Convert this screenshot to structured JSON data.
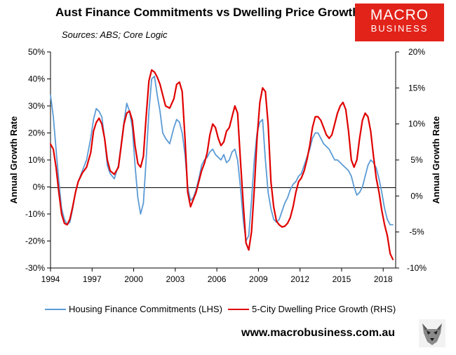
{
  "title": "Aust Finance Commitments vs Dwelling Price Growth",
  "sources": "Sources: ABS; Core Logic",
  "logo": {
    "line1": "MACRO",
    "line2": "BUSINESS",
    "color": "#e2231a"
  },
  "website": "www.macrobusiness.com.au",
  "wolf_icon": "wolf-icon",
  "chart_data": {
    "type": "line",
    "ylabel_left": "Annual Growth Rate",
    "ylabel_right": "Annual Growth Rate",
    "xlim": [
      1994,
      2018.9
    ],
    "ylim_left": [
      -30,
      50
    ],
    "ylim_right": [
      -10,
      20
    ],
    "x_ticks": [
      1994,
      1997,
      2000,
      2003,
      2006,
      2009,
      2012,
      2015,
      2018
    ],
    "x_tick_labels": [
      "1994",
      "1997",
      "2000",
      "2003",
      "2006",
      "2009",
      "2012",
      "2015",
      "2018"
    ],
    "y_ticks_left": [
      -30,
      -20,
      -10,
      0,
      10,
      20,
      30,
      40,
      50
    ],
    "y_tick_labels_left": [
      "-30%",
      "-20%",
      "-10%",
      "0%",
      "10%",
      "20%",
      "30%",
      "40%",
      "50%"
    ],
    "y_ticks_right": [
      -10,
      -5,
      0,
      5,
      10,
      15,
      20
    ],
    "y_tick_labels_right": [
      "-10%",
      "-5%",
      "0%",
      "5%",
      "10%",
      "15%",
      "20%"
    ],
    "grid": false,
    "legend_placement": "bottom",
    "series": [
      {
        "name": "Housing Finance Commitments (LHS)",
        "axis": "left",
        "color": "#5b9bd5",
        "x": [
          1994.0,
          1994.2,
          1994.4,
          1994.6,
          1994.8,
          1995.0,
          1995.2,
          1995.4,
          1995.6,
          1995.8,
          1996.0,
          1996.3,
          1996.6,
          1996.9,
          1997.1,
          1997.3,
          1997.5,
          1997.7,
          1997.9,
          1998.1,
          1998.3,
          1998.6,
          1998.9,
          1999.1,
          1999.3,
          1999.5,
          1999.7,
          1999.9,
          2000.1,
          2000.3,
          2000.5,
          2000.7,
          2000.9,
          2001.1,
          2001.3,
          2001.5,
          2001.7,
          2001.9,
          2002.1,
          2002.3,
          2002.6,
          2002.9,
          2003.1,
          2003.3,
          2003.5,
          2003.7,
          2003.9,
          2004.1,
          2004.3,
          2004.5,
          2004.7,
          2004.9,
          2005.1,
          2005.3,
          2005.5,
          2005.7,
          2005.9,
          2006.1,
          2006.3,
          2006.5,
          2006.7,
          2006.9,
          2007.1,
          2007.3,
          2007.5,
          2007.7,
          2007.9,
          2008.1,
          2008.3,
          2008.5,
          2008.7,
          2008.9,
          2009.1,
          2009.3,
          2009.5,
          2009.7,
          2009.9,
          2010.1,
          2010.3,
          2010.5,
          2010.7,
          2010.9,
          2011.1,
          2011.3,
          2011.5,
          2011.7,
          2011.9,
          2012.1,
          2012.3,
          2012.5,
          2012.7,
          2012.9,
          2013.1,
          2013.3,
          2013.5,
          2013.7,
          2013.9,
          2014.1,
          2014.3,
          2014.5,
          2014.7,
          2014.9,
          2015.1,
          2015.3,
          2015.5,
          2015.7,
          2015.9,
          2016.1,
          2016.3,
          2016.5,
          2016.7,
          2016.9,
          2017.1,
          2017.3,
          2017.5,
          2017.7,
          2017.9,
          2018.1,
          2018.3,
          2018.5,
          2018.7
        ],
        "values": [
          34,
          26,
          14,
          2,
          -8,
          -12,
          -14,
          -13,
          -8,
          -2,
          2,
          6,
          10,
          18,
          25,
          29,
          28,
          26,
          18,
          8,
          5,
          3,
          8,
          16,
          24,
          31,
          28,
          22,
          8,
          -4,
          -10,
          -6,
          10,
          28,
          40,
          41,
          34,
          28,
          20,
          18,
          16,
          22,
          25,
          24,
          20,
          12,
          0,
          -5,
          -4,
          -1,
          3,
          8,
          10,
          11,
          13,
          14,
          12,
          11,
          10,
          12,
          9,
          10,
          13,
          14,
          10,
          0,
          -12,
          -20,
          -18,
          -5,
          10,
          20,
          24,
          25,
          10,
          -2,
          -8,
          -12,
          -13,
          -12,
          -9,
          -6,
          -4,
          -1,
          1,
          2,
          4,
          5,
          8,
          11,
          14,
          18,
          20,
          20,
          18,
          16,
          15,
          14,
          12,
          10,
          10,
          9,
          8,
          7,
          6,
          4,
          0,
          -3,
          -2,
          0,
          4,
          8,
          10,
          9,
          7,
          3,
          -2,
          -8,
          -12,
          -14,
          -14
        ]
      },
      {
        "name": "5-City Dwelling Price Growth (RHS)",
        "axis": "right",
        "color": "#e00000",
        "x": [
          1994.0,
          1994.2,
          1994.4,
          1994.6,
          1994.8,
          1995.0,
          1995.2,
          1995.4,
          1995.6,
          1995.8,
          1996.0,
          1996.3,
          1996.6,
          1996.9,
          1997.1,
          1997.3,
          1997.5,
          1997.7,
          1997.9,
          1998.1,
          1998.3,
          1998.6,
          1998.9,
          1999.1,
          1999.3,
          1999.5,
          1999.7,
          1999.9,
          2000.1,
          2000.3,
          2000.5,
          2000.7,
          2000.9,
          2001.1,
          2001.3,
          2001.5,
          2001.7,
          2001.9,
          2002.1,
          2002.3,
          2002.6,
          2002.9,
          2003.1,
          2003.3,
          2003.5,
          2003.7,
          2003.9,
          2004.1,
          2004.3,
          2004.5,
          2004.7,
          2004.9,
          2005.1,
          2005.3,
          2005.5,
          2005.7,
          2005.9,
          2006.1,
          2006.3,
          2006.5,
          2006.7,
          2006.9,
          2007.1,
          2007.3,
          2007.5,
          2007.7,
          2007.9,
          2008.1,
          2008.3,
          2008.5,
          2008.7,
          2008.9,
          2009.1,
          2009.3,
          2009.5,
          2009.7,
          2009.9,
          2010.1,
          2010.3,
          2010.5,
          2010.7,
          2010.9,
          2011.1,
          2011.3,
          2011.5,
          2011.7,
          2011.9,
          2012.1,
          2012.3,
          2012.5,
          2012.7,
          2012.9,
          2013.1,
          2013.3,
          2013.5,
          2013.7,
          2013.9,
          2014.1,
          2014.3,
          2014.5,
          2014.7,
          2014.9,
          2015.1,
          2015.3,
          2015.5,
          2015.7,
          2015.9,
          2016.1,
          2016.3,
          2016.5,
          2016.7,
          2016.9,
          2017.1,
          2017.3,
          2017.5,
          2017.7,
          2017.9,
          2018.1,
          2018.3,
          2018.5,
          2018.7
        ],
        "values": [
          7.2,
          6.5,
          4.0,
          0.5,
          -2.5,
          -3.8,
          -4.0,
          -3.2,
          -1.5,
          0.5,
          2.0,
          3.2,
          4.0,
          6.0,
          9.0,
          10.2,
          10.8,
          10.0,
          8.0,
          5.0,
          3.5,
          3.0,
          4.0,
          7.0,
          10.0,
          11.5,
          11.8,
          10.5,
          7.0,
          4.5,
          4.0,
          5.5,
          11.0,
          16.0,
          17.5,
          17.2,
          16.5,
          15.5,
          14.0,
          12.5,
          12.2,
          13.5,
          15.5,
          15.8,
          14.5,
          8.0,
          0.5,
          -1.5,
          -0.5,
          0.5,
          2.0,
          3.5,
          4.5,
          6.0,
          8.5,
          10.0,
          9.5,
          8.0,
          7.0,
          7.5,
          9.0,
          9.5,
          11.0,
          12.5,
          11.5,
          5.0,
          -1.0,
          -6.5,
          -7.5,
          -5.0,
          1.0,
          8.0,
          13.0,
          15.0,
          14.5,
          10.0,
          2.0,
          -1.5,
          -3.5,
          -4.0,
          -4.3,
          -4.2,
          -3.8,
          -3.0,
          -1.5,
          0.5,
          2.0,
          2.5,
          3.5,
          5.0,
          7.0,
          9.5,
          11.0,
          11.0,
          10.5,
          9.5,
          8.5,
          8.0,
          8.5,
          10.0,
          11.5,
          12.5,
          13.0,
          12.0,
          9.0,
          5.0,
          4.0,
          5.0,
          8.0,
          10.5,
          11.5,
          11.0,
          9.0,
          5.5,
          2.5,
          0.5,
          -2.0,
          -4.0,
          -5.5,
          -8.0,
          -8.8
        ]
      }
    ]
  }
}
